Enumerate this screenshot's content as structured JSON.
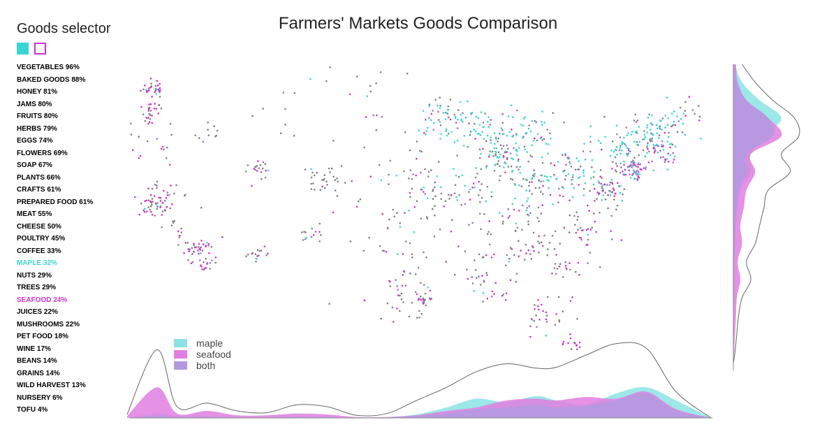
{
  "selector": {
    "title": "Goods selector",
    "swatches": [
      {
        "name": "swatch-maple",
        "fill": "#3ad4d4",
        "border": "#3ad4d4"
      },
      {
        "name": "swatch-seafood",
        "fill": "#ffffff",
        "border": "#cc33cc"
      }
    ],
    "items": [
      {
        "label": "VEGETABLES 96%",
        "state": "none"
      },
      {
        "label": "BAKED GOODS 88%",
        "state": "none"
      },
      {
        "label": "HONEY 81%",
        "state": "none"
      },
      {
        "label": "JAMS 80%",
        "state": "none"
      },
      {
        "label": "FRUITS 80%",
        "state": "none"
      },
      {
        "label": "HERBS 79%",
        "state": "none"
      },
      {
        "label": "EGGS 74%",
        "state": "none"
      },
      {
        "label": "FLOWERS 69%",
        "state": "none"
      },
      {
        "label": "SOAP 67%",
        "state": "none"
      },
      {
        "label": "PLANTS 66%",
        "state": "none"
      },
      {
        "label": "CRAFTS 61%",
        "state": "none"
      },
      {
        "label": "PREPARED FOOD 61%",
        "state": "none"
      },
      {
        "label": "MEAT 55%",
        "state": "none"
      },
      {
        "label": "CHEESE 50%",
        "state": "none"
      },
      {
        "label": "POULTRY 45%",
        "state": "none"
      },
      {
        "label": "COFFEE 33%",
        "state": "none"
      },
      {
        "label": "MAPLE 32%",
        "state": "maple"
      },
      {
        "label": "NUTS 29%",
        "state": "none"
      },
      {
        "label": "TREES 29%",
        "state": "none"
      },
      {
        "label": "SEAFOOD 24%",
        "state": "seafood"
      },
      {
        "label": "JUICES 22%",
        "state": "none"
      },
      {
        "label": "MUSHROOMS 22%",
        "state": "none"
      },
      {
        "label": "PET FOOD 18%",
        "state": "none"
      },
      {
        "label": "WINE 17%",
        "state": "none"
      },
      {
        "label": "BEANS 14%",
        "state": "none"
      },
      {
        "label": "GRAINS 14%",
        "state": "none"
      },
      {
        "label": "WILD HARVEST 13%",
        "state": "none"
      },
      {
        "label": "NURSERY 6%",
        "state": "none"
      },
      {
        "label": "TOFU 4%",
        "state": "none"
      }
    ]
  },
  "colors": {
    "maple": "#3ad4d4",
    "seafood": "#cc33cc",
    "both": "#9b6fd6",
    "other": "#808080",
    "maple_area": "#8be3e3",
    "seafood_area": "#e17ee1",
    "both_area": "#b39ae0",
    "all_line": "#666666"
  },
  "chart_data": {
    "type": "scatter",
    "title": "Farmers' Markets Goods Comparison",
    "legend": {
      "placement": "bottom-left",
      "entries": [
        {
          "label": "maple",
          "key": "maple"
        },
        {
          "label": "seafood",
          "key": "seafood"
        },
        {
          "label": "both",
          "key": "both"
        }
      ]
    },
    "axes": {
      "x": {
        "quantity": "longitude",
        "range": [
          -125,
          -66.5
        ]
      },
      "y": {
        "quantity": "latitude",
        "range": [
          24.5,
          49.5
        ]
      }
    },
    "clusters": [
      {
        "lon": -122.4,
        "lat": 47.5,
        "n": 30,
        "sd": 0.5,
        "mix": [
          0.05,
          0.55,
          0.05
        ]
      },
      {
        "lon": -122.7,
        "lat": 45.5,
        "n": 25,
        "sd": 0.5,
        "mix": [
          0.05,
          0.55,
          0.05
        ]
      },
      {
        "lon": -122.8,
        "lat": 42.5,
        "n": 18,
        "sd": 1.2,
        "mix": [
          0.05,
          0.35,
          0.05
        ]
      },
      {
        "lon": -122.3,
        "lat": 37.8,
        "n": 45,
        "sd": 0.7,
        "mix": [
          0.03,
          0.55,
          0.04
        ]
      },
      {
        "lon": -121.0,
        "lat": 38.8,
        "n": 15,
        "sd": 1.0,
        "mix": [
          0.05,
          0.3,
          0.05
        ]
      },
      {
        "lon": -119.5,
        "lat": 36.2,
        "n": 15,
        "sd": 1.1,
        "mix": [
          0.03,
          0.25,
          0.03
        ]
      },
      {
        "lon": -118.2,
        "lat": 34.1,
        "n": 40,
        "sd": 0.6,
        "mix": [
          0.03,
          0.55,
          0.04
        ]
      },
      {
        "lon": -117.1,
        "lat": 32.8,
        "n": 14,
        "sd": 0.4,
        "mix": [
          0.03,
          0.5,
          0.03
        ]
      },
      {
        "lon": -111.9,
        "lat": 40.7,
        "n": 20,
        "sd": 0.5,
        "mix": [
          0.03,
          0.3,
          0.03
        ]
      },
      {
        "lon": -111.8,
        "lat": 33.4,
        "n": 16,
        "sd": 0.5,
        "mix": [
          0.03,
          0.35,
          0.03
        ]
      },
      {
        "lon": -105.0,
        "lat": 39.7,
        "n": 30,
        "sd": 0.7,
        "mix": [
          0.05,
          0.2,
          0.03
        ]
      },
      {
        "lon": -106.6,
        "lat": 35.2,
        "n": 14,
        "sd": 0.7,
        "mix": [
          0.03,
          0.25,
          0.03
        ]
      },
      {
        "lon": -116.2,
        "lat": 43.6,
        "n": 10,
        "sd": 0.8,
        "mix": [
          0.05,
          0.2,
          0.03
        ]
      },
      {
        "lon": -108.0,
        "lat": 45.5,
        "n": 12,
        "sd": 2.5,
        "mix": [
          0.05,
          0.15,
          0.03
        ]
      },
      {
        "lon": -100.0,
        "lat": 47.0,
        "n": 14,
        "sd": 2.5,
        "mix": [
          0.1,
          0.1,
          0.03
        ]
      },
      {
        "lon": -99.0,
        "lat": 41.0,
        "n": 30,
        "sd": 2.5,
        "mix": [
          0.05,
          0.1,
          0.02
        ]
      },
      {
        "lon": -97.5,
        "lat": 35.5,
        "n": 35,
        "sd": 2.0,
        "mix": [
          0.03,
          0.15,
          0.02
        ]
      },
      {
        "lon": -97.5,
        "lat": 30.5,
        "n": 40,
        "sd": 1.5,
        "mix": [
          0.03,
          0.3,
          0.03
        ]
      },
      {
        "lon": -95.4,
        "lat": 29.8,
        "n": 20,
        "sd": 0.5,
        "mix": [
          0.03,
          0.45,
          0.03
        ]
      },
      {
        "lon": -94.5,
        "lat": 39.0,
        "n": 40,
        "sd": 1.5,
        "mix": [
          0.12,
          0.12,
          0.04
        ]
      },
      {
        "lon": -93.3,
        "lat": 44.9,
        "n": 55,
        "sd": 1.2,
        "mix": [
          0.55,
          0.06,
          0.08
        ]
      },
      {
        "lon": -89.5,
        "lat": 44.0,
        "n": 60,
        "sd": 1.4,
        "mix": [
          0.6,
          0.05,
          0.08
        ]
      },
      {
        "lon": -87.7,
        "lat": 41.9,
        "n": 55,
        "sd": 0.9,
        "mix": [
          0.3,
          0.12,
          0.12
        ]
      },
      {
        "lon": -84.8,
        "lat": 43.5,
        "n": 55,
        "sd": 1.4,
        "mix": [
          0.55,
          0.05,
          0.08
        ]
      },
      {
        "lon": -84.0,
        "lat": 39.8,
        "n": 60,
        "sd": 1.3,
        "mix": [
          0.4,
          0.08,
          0.08
        ]
      },
      {
        "lon": -86.5,
        "lat": 36.5,
        "n": 40,
        "sd": 1.6,
        "mix": [
          0.15,
          0.15,
          0.05
        ]
      },
      {
        "lon": -90.0,
        "lat": 38.6,
        "n": 25,
        "sd": 1.2,
        "mix": [
          0.25,
          0.1,
          0.05
        ]
      },
      {
        "lon": -80.0,
        "lat": 40.5,
        "n": 50,
        "sd": 1.2,
        "mix": [
          0.45,
          0.08,
          0.1
        ]
      },
      {
        "lon": -77.0,
        "lat": 38.9,
        "n": 55,
        "sd": 0.8,
        "mix": [
          0.25,
          0.3,
          0.15
        ]
      },
      {
        "lon": -74.0,
        "lat": 40.7,
        "n": 60,
        "sd": 0.7,
        "mix": [
          0.2,
          0.35,
          0.2
        ]
      },
      {
        "lon": -75.5,
        "lat": 42.8,
        "n": 65,
        "sd": 1.2,
        "mix": [
          0.65,
          0.04,
          0.1
        ]
      },
      {
        "lon": -72.5,
        "lat": 44.0,
        "n": 55,
        "sd": 1.0,
        "mix": [
          0.7,
          0.04,
          0.1
        ]
      },
      {
        "lon": -71.3,
        "lat": 42.2,
        "n": 45,
        "sd": 0.7,
        "mix": [
          0.35,
          0.3,
          0.15
        ]
      },
      {
        "lon": -69.5,
        "lat": 45.0,
        "n": 25,
        "sd": 1.0,
        "mix": [
          0.45,
          0.15,
          0.1
        ]
      },
      {
        "lon": -79.5,
        "lat": 35.8,
        "n": 40,
        "sd": 1.2,
        "mix": [
          0.05,
          0.3,
          0.04
        ]
      },
      {
        "lon": -84.4,
        "lat": 33.8,
        "n": 30,
        "sd": 1.0,
        "mix": [
          0.04,
          0.25,
          0.03
        ]
      },
      {
        "lon": -81.0,
        "lat": 32.5,
        "n": 20,
        "sd": 0.9,
        "mix": [
          0.03,
          0.45,
          0.03
        ]
      },
      {
        "lon": -90.0,
        "lat": 32.5,
        "n": 25,
        "sd": 1.5,
        "mix": [
          0.03,
          0.3,
          0.03
        ]
      },
      {
        "lon": -88.0,
        "lat": 30.6,
        "n": 15,
        "sd": 0.8,
        "mix": [
          0.03,
          0.5,
          0.03
        ]
      },
      {
        "lon": -82.5,
        "lat": 28.5,
        "n": 30,
        "sd": 1.1,
        "mix": [
          0.03,
          0.5,
          0.03
        ]
      },
      {
        "lon": -80.3,
        "lat": 26.2,
        "n": 14,
        "sd": 0.5,
        "mix": [
          0.03,
          0.55,
          0.03
        ]
      }
    ],
    "lon_density_x": [
      -125,
      -122,
      -120,
      -117,
      -114,
      -111,
      -108,
      -105,
      -102,
      -99,
      -96,
      -93,
      -90,
      -87,
      -84,
      -82,
      -79,
      -76,
      -73,
      -70,
      -66.5
    ],
    "lon_density": {
      "all": [
        0.04,
        0.78,
        0.13,
        0.17,
        0.08,
        0.06,
        0.15,
        0.13,
        0.03,
        0.05,
        0.2,
        0.35,
        0.53,
        0.62,
        0.57,
        0.58,
        0.72,
        0.85,
        0.8,
        0.3,
        0.0
      ],
      "maple": [
        0.0,
        0.05,
        0.02,
        0.02,
        0.01,
        0.01,
        0.01,
        0.01,
        0.0,
        0.01,
        0.04,
        0.12,
        0.22,
        0.18,
        0.25,
        0.2,
        0.15,
        0.28,
        0.35,
        0.2,
        0.0
      ],
      "seafood": [
        0.02,
        0.35,
        0.05,
        0.08,
        0.03,
        0.03,
        0.05,
        0.04,
        0.01,
        0.01,
        0.03,
        0.08,
        0.12,
        0.2,
        0.22,
        0.2,
        0.24,
        0.22,
        0.3,
        0.1,
        0.0
      ],
      "both": [
        0.0,
        0.02,
        0.01,
        0.01,
        0.0,
        0.0,
        0.01,
        0.01,
        0.0,
        0.0,
        0.02,
        0.05,
        0.1,
        0.12,
        0.15,
        0.12,
        0.14,
        0.2,
        0.28,
        0.08,
        0.0
      ]
    },
    "lat_density_y": [
      49.5,
      48,
      46.5,
      45,
      43.5,
      42,
      40.5,
      39,
      37.5,
      36,
      34.5,
      33,
      31.5,
      30,
      28.5,
      27,
      25.5,
      24.5
    ],
    "lat_density": {
      "all": [
        0.1,
        0.25,
        0.45,
        0.7,
        0.75,
        0.55,
        0.65,
        0.4,
        0.35,
        0.3,
        0.25,
        0.15,
        0.2,
        0.1,
        0.06,
        0.04,
        0.02,
        0.0
      ],
      "maple": [
        0.02,
        0.1,
        0.3,
        0.55,
        0.35,
        0.2,
        0.2,
        0.08,
        0.05,
        0.03,
        0.02,
        0.01,
        0.01,
        0.01,
        0.0,
        0.0,
        0.0,
        0.0
      ],
      "seafood": [
        0.03,
        0.05,
        0.15,
        0.4,
        0.55,
        0.2,
        0.25,
        0.15,
        0.12,
        0.08,
        0.1,
        0.05,
        0.08,
        0.04,
        0.03,
        0.02,
        0.01,
        0.0
      ],
      "both": [
        0.01,
        0.04,
        0.15,
        0.4,
        0.45,
        0.15,
        0.15,
        0.06,
        0.04,
        0.02,
        0.02,
        0.01,
        0.01,
        0.01,
        0.0,
        0.0,
        0.0,
        0.0
      ]
    }
  }
}
